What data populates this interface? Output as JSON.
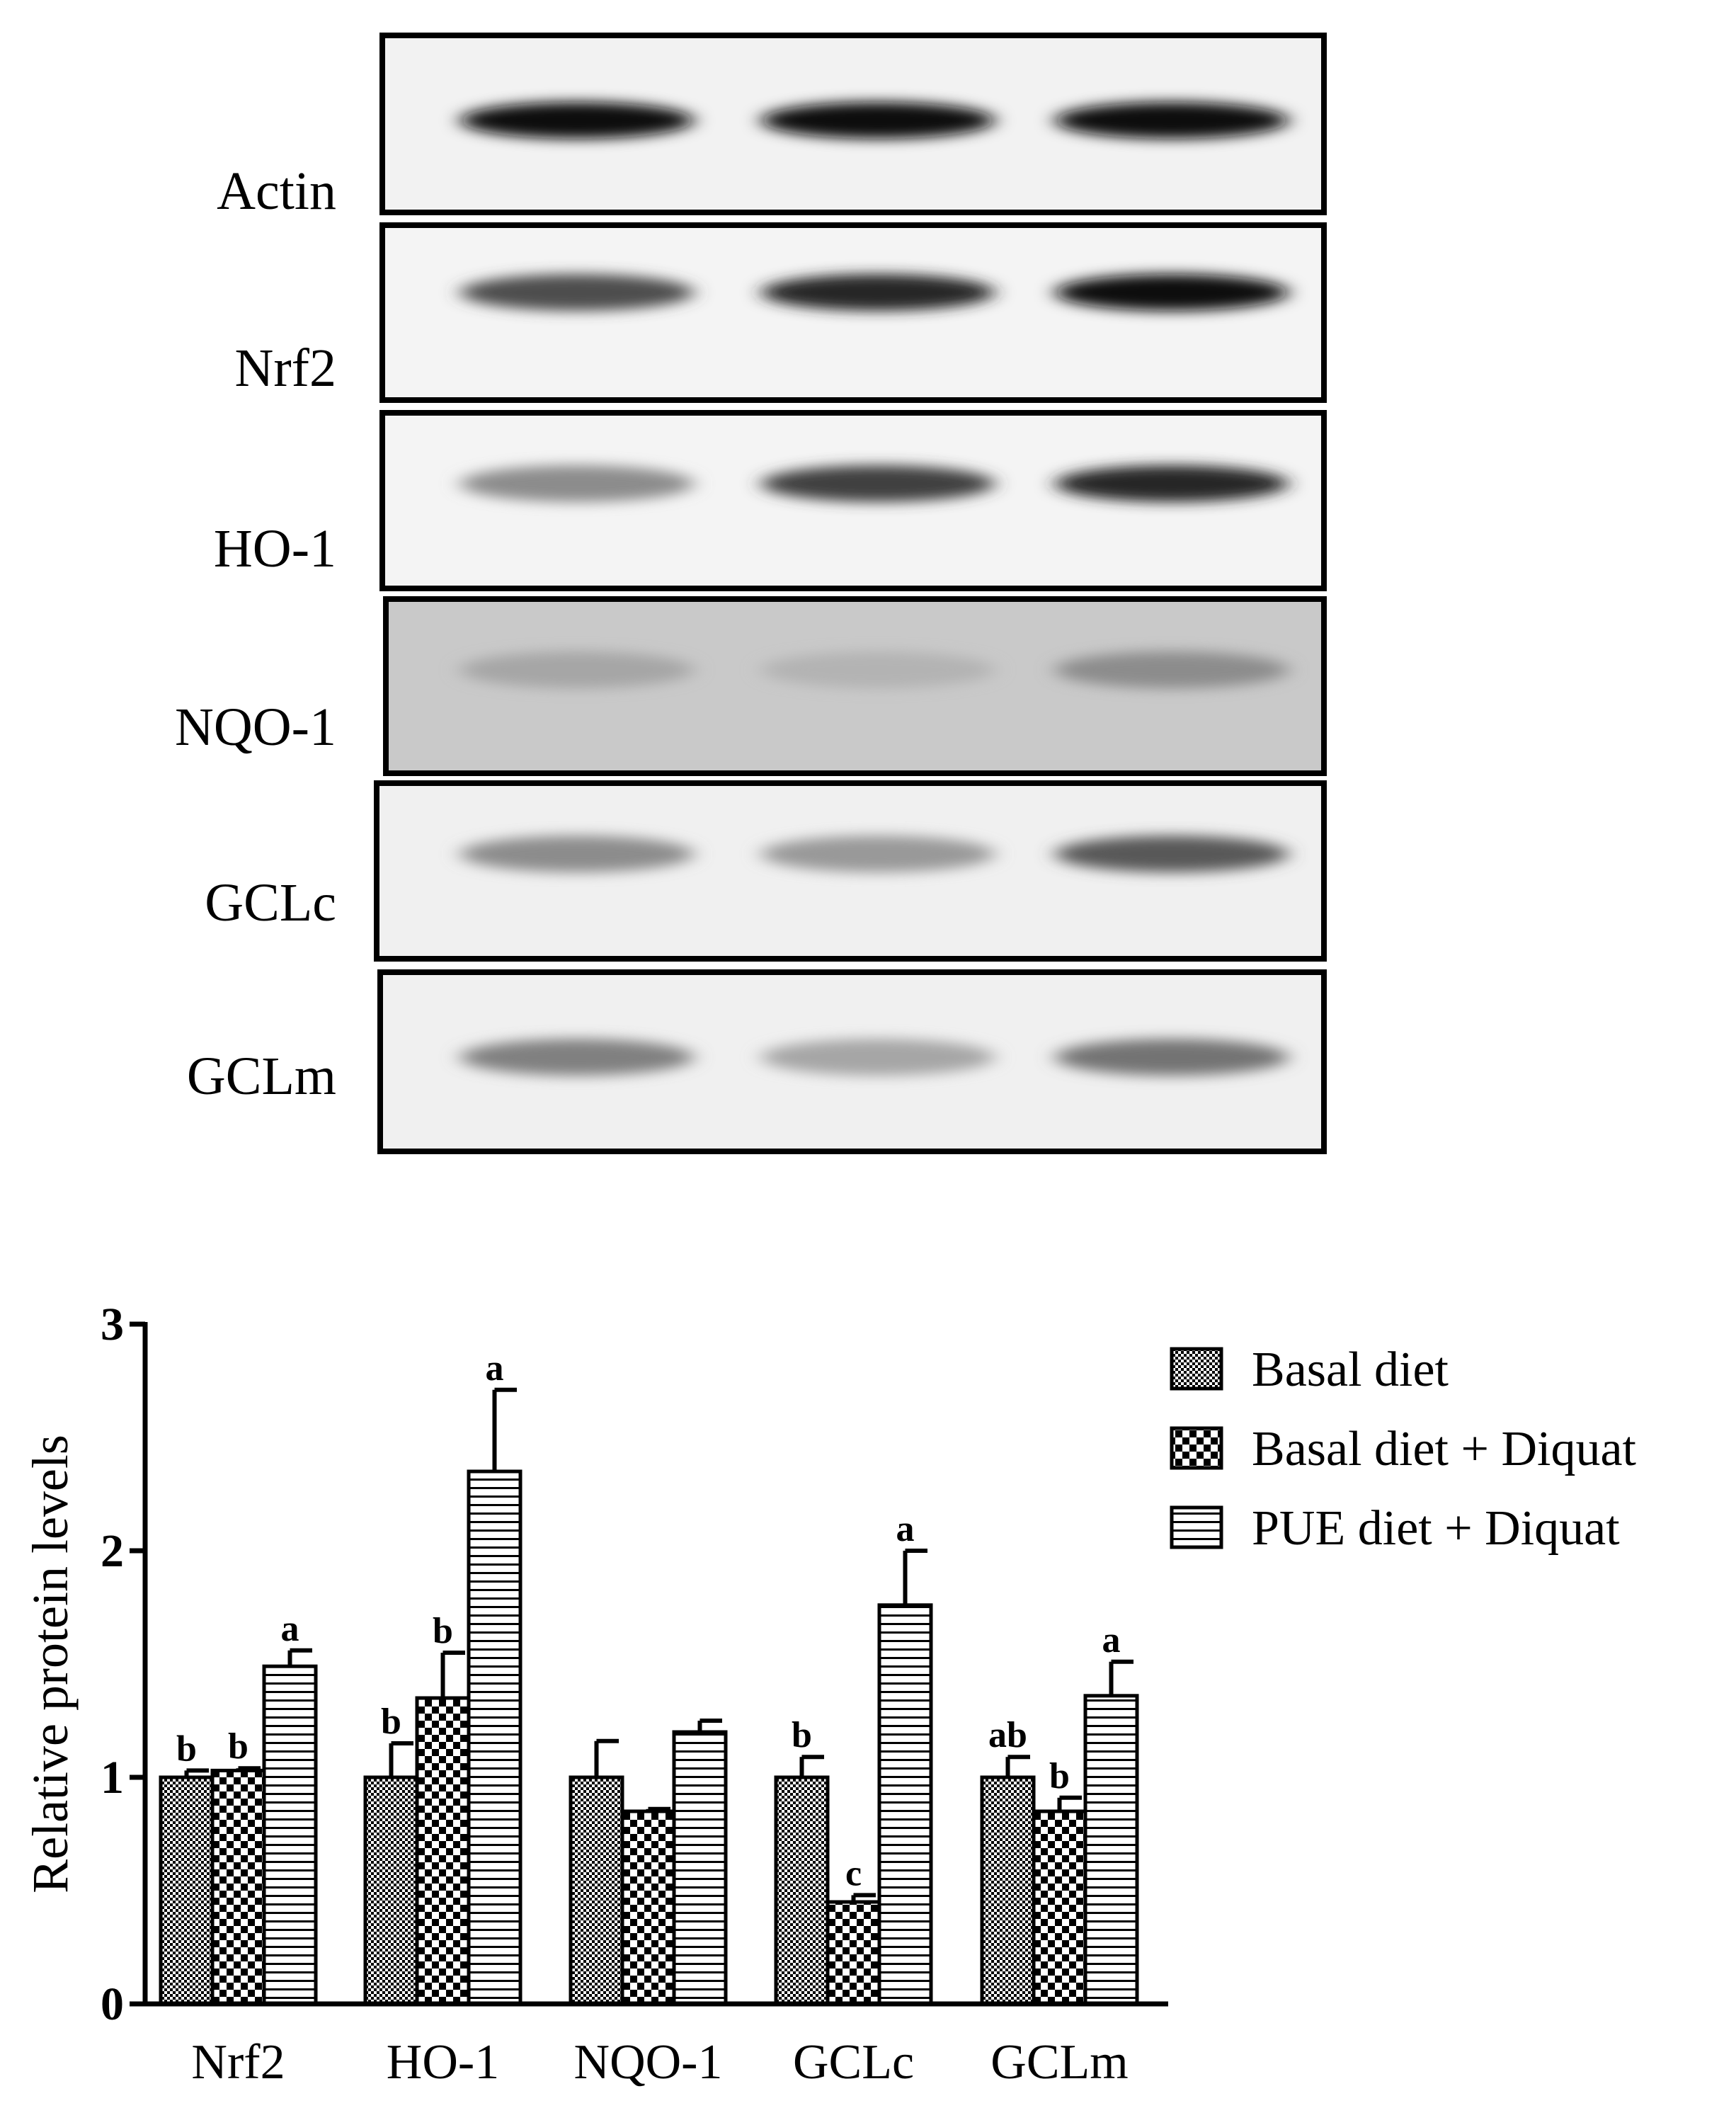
{
  "blot": {
    "rows": [
      {
        "label": "Actin",
        "intensity": [
          0.95,
          0.95,
          0.95
        ],
        "background": "#f2f2f2"
      },
      {
        "label": "Nrf2",
        "intensity": [
          0.7,
          0.85,
          0.95
        ],
        "background": "#f4f4f4"
      },
      {
        "label": "HO-1",
        "intensity": [
          0.45,
          0.75,
          0.85
        ],
        "background": "#f4f4f4"
      },
      {
        "label": "NQO-1",
        "intensity": [
          0.35,
          0.3,
          0.45
        ],
        "background": "#c9c9c9"
      },
      {
        "label": "GCLc",
        "intensity": [
          0.45,
          0.4,
          0.65
        ],
        "background": "#f0f0f0"
      },
      {
        "label": "GCLm",
        "intensity": [
          0.5,
          0.35,
          0.55
        ],
        "background": "#f0f0f0"
      }
    ]
  },
  "chart_data": {
    "type": "bar",
    "ylabel": "Relative protein levels",
    "xlabel": "",
    "ylim": [
      0,
      3
    ],
    "yticks": [
      "0",
      "1",
      "2",
      "3"
    ],
    "categories": [
      "Nrf2",
      "HO-1",
      "NQO-1",
      "GCLc",
      "GCLm"
    ],
    "series": [
      {
        "name": "Basal diet",
        "pattern": "dots",
        "values": [
          1.0,
          1.0,
          1.0,
          1.0,
          1.0
        ],
        "errors": [
          0.03,
          0.15,
          0.16,
          0.09,
          0.09
        ],
        "letters": [
          "b",
          "b",
          "",
          "b",
          "ab"
        ]
      },
      {
        "name": "Basal diet + Diquat",
        "pattern": "checker",
        "values": [
          1.03,
          1.35,
          0.85,
          0.45,
          0.85
        ],
        "errors": [
          0.01,
          0.2,
          0.01,
          0.03,
          0.06
        ],
        "letters": [
          "b",
          "b",
          "",
          "c",
          "b"
        ]
      },
      {
        "name": "PUE diet + Diquat",
        "pattern": "stripes",
        "values": [
          1.49,
          2.35,
          1.2,
          1.76,
          1.36
        ],
        "errors": [
          0.07,
          0.36,
          0.05,
          0.24,
          0.15
        ],
        "letters": [
          "a",
          "a",
          "",
          "a",
          "a"
        ]
      }
    ],
    "legend_position": "top-right",
    "grid": false
  }
}
